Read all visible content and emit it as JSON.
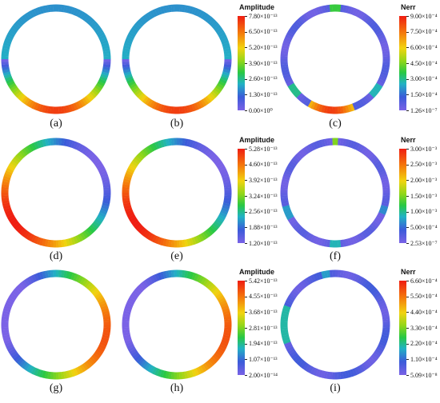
{
  "panels": [
    {
      "label": "(a)",
      "type": "amplitude",
      "pattern": "bottom"
    },
    {
      "label": "(b)",
      "type": "amplitude",
      "pattern": "bottom"
    },
    {
      "label": "(c)",
      "type": "nerr",
      "pattern": "noise1"
    },
    {
      "label": "(d)",
      "type": "amplitude",
      "pattern": "lower-left"
    },
    {
      "label": "(e)",
      "type": "amplitude",
      "pattern": "lower-left"
    },
    {
      "label": "(f)",
      "type": "nerr",
      "pattern": "noise2"
    },
    {
      "label": "(g)",
      "type": "amplitude",
      "pattern": "right"
    },
    {
      "label": "(h)",
      "type": "amplitude",
      "pattern": "right"
    },
    {
      "label": "(i)",
      "type": "nerr",
      "pattern": "noise3"
    }
  ],
  "colorbars": [
    {
      "title": "Amplitude",
      "ticks": [
        "7.80×10⁻¹³",
        "6.50×10⁻¹³",
        "5.20×10⁻¹³",
        "3.90×10⁻¹³",
        "2.60×10⁻¹³",
        "1.30×10⁻¹³",
        "0.00×10⁰"
      ]
    },
    {
      "title": "Nerr",
      "ticks": [
        "9.00×10⁻⁴",
        "7.50×10⁻⁴",
        "6.00×10⁻⁴",
        "4.50×10⁻⁴",
        "3.00×10⁻⁴",
        "1.50×10⁻⁴",
        "1.26×10⁻⁷"
      ]
    },
    {
      "title": "Amplitude",
      "ticks": [
        "5.28×10⁻¹³",
        "4.60×10⁻¹³",
        "3.92×10⁻¹³",
        "3.24×10⁻¹³",
        "2.56×10⁻¹³",
        "1.88×10⁻¹³",
        "1.20×10⁻¹³"
      ]
    },
    {
      "title": "Nerr",
      "ticks": [
        "3.00×10⁻³",
        "2.50×10⁻³",
        "2.00×10⁻³",
        "1.50×10⁻³",
        "1.00×10⁻³",
        "5.00×10⁻⁴",
        "2.53×10⁻⁷"
      ]
    },
    {
      "title": "Amplitude",
      "ticks": [
        "5.42×10⁻¹³",
        "4.55×10⁻¹³",
        "3.68×10⁻¹³",
        "2.81×10⁻¹³",
        "1.94×10⁻¹³",
        "1.07×10⁻¹³",
        "2.00×10⁻¹⁴"
      ]
    },
    {
      "title": "Nerr",
      "ticks": [
        "6.60×10⁻⁴",
        "5.50×10⁻⁴",
        "4.40×10⁻⁴",
        "3.30×10⁻⁴",
        "2.20×10⁻⁴",
        "1.10×10⁻⁴",
        "5.09×10⁻⁸"
      ]
    }
  ],
  "colors": {
    "scale": [
      "#7a62e6",
      "#3b5bd9",
      "#22b2c4",
      "#28c844",
      "#8fd61a",
      "#f2d30f",
      "#f47a0c",
      "#ef1d12"
    ]
  }
}
